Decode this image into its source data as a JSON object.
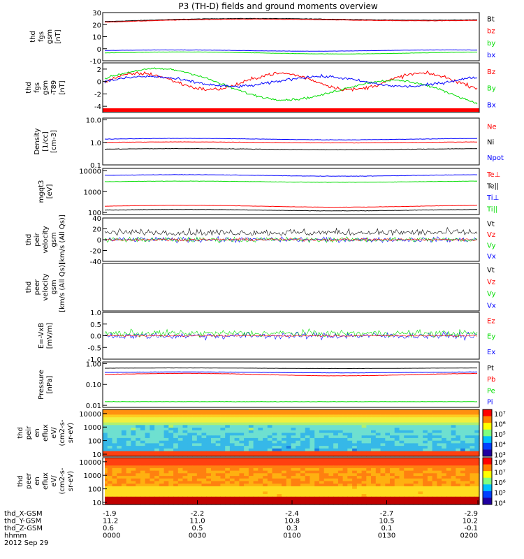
{
  "title": "P3 (TH-D) fields and ground moments overview",
  "colors": {
    "black": "#000000",
    "red": "#ff0000",
    "green": "#00dd00",
    "blue": "#0000ff"
  },
  "panels": [
    {
      "id": "fgs",
      "ylabel": [
        "thd",
        "fgs",
        "gsm",
        "[nT]"
      ],
      "scale": "linear",
      "ylim": [
        -10,
        30
      ],
      "ticks": [
        "30",
        "20",
        "10",
        "0",
        "-10"
      ],
      "tickvals": [
        30,
        20,
        10,
        0,
        -10
      ],
      "legend": [
        {
          "label": "Bt",
          "color": "#000000"
        },
        {
          "label": "bz",
          "color": "#ff0000"
        },
        {
          "label": "by",
          "color": "#00dd00"
        },
        {
          "label": "bx",
          "color": "#0000ff"
        }
      ]
    },
    {
      "id": "fgs_dtb",
      "ylabel": [
        "thd",
        "fgs",
        "gsm",
        "-T89",
        "[nT]"
      ],
      "scale": "linear",
      "ylim": [
        -5,
        3
      ],
      "ticks": [
        "2",
        "0",
        "-2",
        "-4"
      ],
      "tickvals": [
        2,
        0,
        -2,
        -4
      ],
      "legend": [
        {
          "label": "Bz",
          "color": "#ff0000"
        },
        {
          "label": "By",
          "color": "#00dd00"
        },
        {
          "label": "Bx",
          "color": "#0000ff"
        }
      ]
    },
    {
      "id": "density",
      "ylabel": [
        "Density",
        "[1/cc]",
        "[cm-3]"
      ],
      "scale": "log",
      "ylim": [
        0.1,
        12
      ],
      "ticks": [
        "10.0",
        "1.0",
        "0.1"
      ],
      "tickvals": [
        10,
        1,
        0.1
      ],
      "legend": [
        {
          "label": "Ne",
          "color": "#ff0000"
        },
        {
          "label": "Ni",
          "color": "#000000"
        },
        {
          "label": "Npot",
          "color": "#0000ff"
        }
      ]
    },
    {
      "id": "temp",
      "ylabel": [
        "mgqt3",
        "[eV]"
      ],
      "scale": "log",
      "ylim": [
        80,
        13000
      ],
      "ticks": [
        "10000",
        "1000",
        "100"
      ],
      "tickvals": [
        10000,
        1000,
        100
      ],
      "legend": [
        {
          "label": "Te⊥",
          "color": "#ff0000"
        },
        {
          "label": "Te||",
          "color": "#000000"
        },
        {
          "label": "Ti⊥",
          "color": "#0000ff"
        },
        {
          "label": "Ti||",
          "color": "#00dd00"
        }
      ]
    },
    {
      "id": "vi",
      "ylabel": [
        "thd",
        "peir",
        "velocity",
        "gsm",
        "[km/s (All Qs)]"
      ],
      "scale": "linear",
      "ylim": [
        -40,
        40
      ],
      "ticks": [
        "40",
        "20",
        "0",
        "-20",
        "-40"
      ],
      "tickvals": [
        40,
        20,
        0,
        -20,
        -40
      ],
      "legend": [
        {
          "label": "Vt",
          "color": "#000000"
        },
        {
          "label": "Vz",
          "color": "#ff0000"
        },
        {
          "label": "Vy",
          "color": "#00dd00"
        },
        {
          "label": "Vx",
          "color": "#0000ff"
        }
      ]
    },
    {
      "id": "ve",
      "ylabel": [
        "thd",
        "peer",
        "velocity",
        "gsm",
        "[km/s (All Qs)]"
      ],
      "scale": "linear",
      "ylim": [
        -1,
        1
      ],
      "ticks": [],
      "tickvals": [],
      "legend": [
        {
          "label": "Vt",
          "color": "#000000"
        },
        {
          "label": "Vz",
          "color": "#ff0000"
        },
        {
          "label": "Vy",
          "color": "#00dd00"
        },
        {
          "label": "Vx",
          "color": "#0000ff"
        }
      ]
    },
    {
      "id": "efield",
      "ylabel": [
        "E=-VxB",
        "[mV/m]"
      ],
      "scale": "linear",
      "ylim": [
        -1,
        1
      ],
      "ticks": [
        "1.0",
        "0.5",
        "0.0",
        "-0.5",
        "-1.0"
      ],
      "tickvals": [
        1,
        0.5,
        0,
        -0.5,
        -1
      ],
      "legend": [
        {
          "label": "Ez",
          "color": "#ff0000"
        },
        {
          "label": "Ey",
          "color": "#00dd00"
        },
        {
          "label": "Ex",
          "color": "#0000ff"
        }
      ]
    },
    {
      "id": "pressure",
      "ylabel": [
        "Pressure",
        "[nPa]"
      ],
      "scale": "log",
      "ylim": [
        0.008,
        1.2
      ],
      "ticks": [
        "1.00",
        "0.10",
        "0.01"
      ],
      "tickvals": [
        1,
        0.1,
        0.01
      ],
      "legend": [
        {
          "label": "Pt",
          "color": "#000000"
        },
        {
          "label": "Pb",
          "color": "#ff0000"
        },
        {
          "label": "Pe",
          "color": "#00dd00"
        },
        {
          "label": "Pi",
          "color": "#0000ff"
        }
      ]
    },
    {
      "id": "ion_spec",
      "ylabel": [
        "thd",
        "peir",
        "en",
        "eflux",
        "eV/",
        "(cm2-s-",
        "sr-eV)"
      ],
      "scale": "log",
      "ylim": [
        7,
        20000
      ],
      "ticks": [
        "10000",
        "1000",
        "100",
        "10"
      ],
      "tickvals": [
        10000,
        1000,
        100,
        10
      ],
      "colorbar": {
        "labels": [
          "10⁷",
          "10⁶",
          "10⁵",
          "10⁴",
          "10³"
        ],
        "exps": [
          7,
          6,
          5,
          4,
          3
        ]
      }
    },
    {
      "id": "elec_spec",
      "ylabel": [
        "thd",
        "peer",
        "en",
        "eflux",
        "eV/",
        "(cm2-s-",
        "sr-eV)"
      ],
      "scale": "log",
      "ylim": [
        7,
        20000
      ],
      "ticks": [
        "10000",
        "1000",
        "100",
        "10"
      ],
      "tickvals": [
        10000,
        1000,
        100,
        10
      ],
      "colorbar": {
        "labels": [
          "10⁸",
          "10⁷",
          "10⁶",
          "10⁵",
          "10⁴"
        ],
        "exps": [
          8,
          7,
          6,
          5,
          4
        ]
      }
    }
  ],
  "chart_data": {
    "type": "line",
    "title": "P3 (TH-D) fields and ground moments overview",
    "x": [
      "0000",
      "0030",
      "0100",
      "0130",
      "0200"
    ],
    "series": [
      {
        "name": "Bt",
        "values": [
          21,
          22,
          22,
          23,
          25
        ]
      },
      {
        "name": "bz",
        "values": [
          20.5,
          21.5,
          21.5,
          22.5,
          24.5
        ]
      },
      {
        "name": "by",
        "values": [
          -3,
          -4,
          -4,
          -3.5,
          -3.5
        ]
      },
      {
        "name": "bx",
        "values": [
          -1,
          -1.5,
          -2,
          -2,
          -1.5
        ]
      },
      {
        "name": "Ne",
        "values": [
          1.2,
          1.3,
          1.3,
          1.3,
          1.3
        ]
      },
      {
        "name": "Ni",
        "values": [
          0.5,
          0.5,
          0.5,
          0.55,
          0.55
        ]
      },
      {
        "name": "Npot",
        "values": [
          1.5,
          1.6,
          1.6,
          1.5,
          1.4
        ]
      },
      {
        "name": "Te⊥",
        "values": [
          6000,
          5500,
          5500,
          5000,
          5000
        ]
      },
      {
        "name": "Te||",
        "values": [
          3000,
          3000,
          3000,
          2900,
          2800
        ]
      },
      {
        "name": "Ti⊥",
        "values": [
          200,
          200,
          200,
          210,
          210
        ]
      },
      {
        "name": "Ti||",
        "values": [
          130,
          130,
          130,
          140,
          150
        ]
      },
      {
        "name": "Pt",
        "values": [
          0.45,
          0.6,
          0.6,
          0.6,
          0.6
        ]
      },
      {
        "name": "Pb",
        "values": [
          0.3,
          0.35,
          0.35,
          0.36,
          0.38
        ]
      },
      {
        "name": "Pe",
        "values": [
          0.015,
          0.015,
          0.015,
          0.015,
          0.015
        ]
      },
      {
        "name": "Pi",
        "values": [
          0.4,
          0.4,
          0.4,
          0.4,
          0.38
        ]
      }
    ]
  },
  "footer": {
    "rows": [
      {
        "label": "thd_X-GSM",
        "values": [
          "-1.9",
          "-2.2",
          "-2.4",
          "-2.7",
          "-2.9"
        ]
      },
      {
        "label": "thd_Y-GSM",
        "values": [
          "11.2",
          "11.0",
          "10.8",
          "10.5",
          "10.2"
        ]
      },
      {
        "label": "thd_Z-GSM",
        "values": [
          "0.6",
          "0.5",
          "0.3",
          "0.1",
          "-0.1"
        ]
      },
      {
        "label": "hhmm",
        "values": [
          "0000",
          "0030",
          "0100",
          "0130",
          "0200"
        ]
      }
    ],
    "date": "2012 Sep 29"
  }
}
